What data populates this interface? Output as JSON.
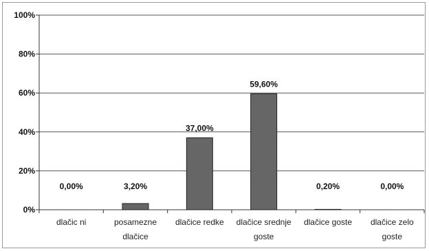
{
  "chart_data": {
    "type": "bar",
    "categories": [
      [
        "dlačic ni"
      ],
      [
        "posamezne",
        "dlačice"
      ],
      [
        "dlačice redke"
      ],
      [
        "dlačice srednje",
        "goste"
      ],
      [
        "dlačice goste"
      ],
      [
        "dlačice zelo",
        "goste"
      ]
    ],
    "values": [
      0.0,
      3.2,
      37.0,
      59.6,
      0.2,
      0.0
    ],
    "data_labels": [
      "0,00%",
      "3,20%",
      "37,00%",
      "59,60%",
      "0,20%",
      "0,00%"
    ],
    "y_ticks": [
      "0%",
      "20%",
      "40%",
      "60%",
      "80%",
      "100%"
    ],
    "ylim": [
      0,
      100
    ],
    "grid": true,
    "bar_color": "#666666",
    "legend": "none"
  }
}
